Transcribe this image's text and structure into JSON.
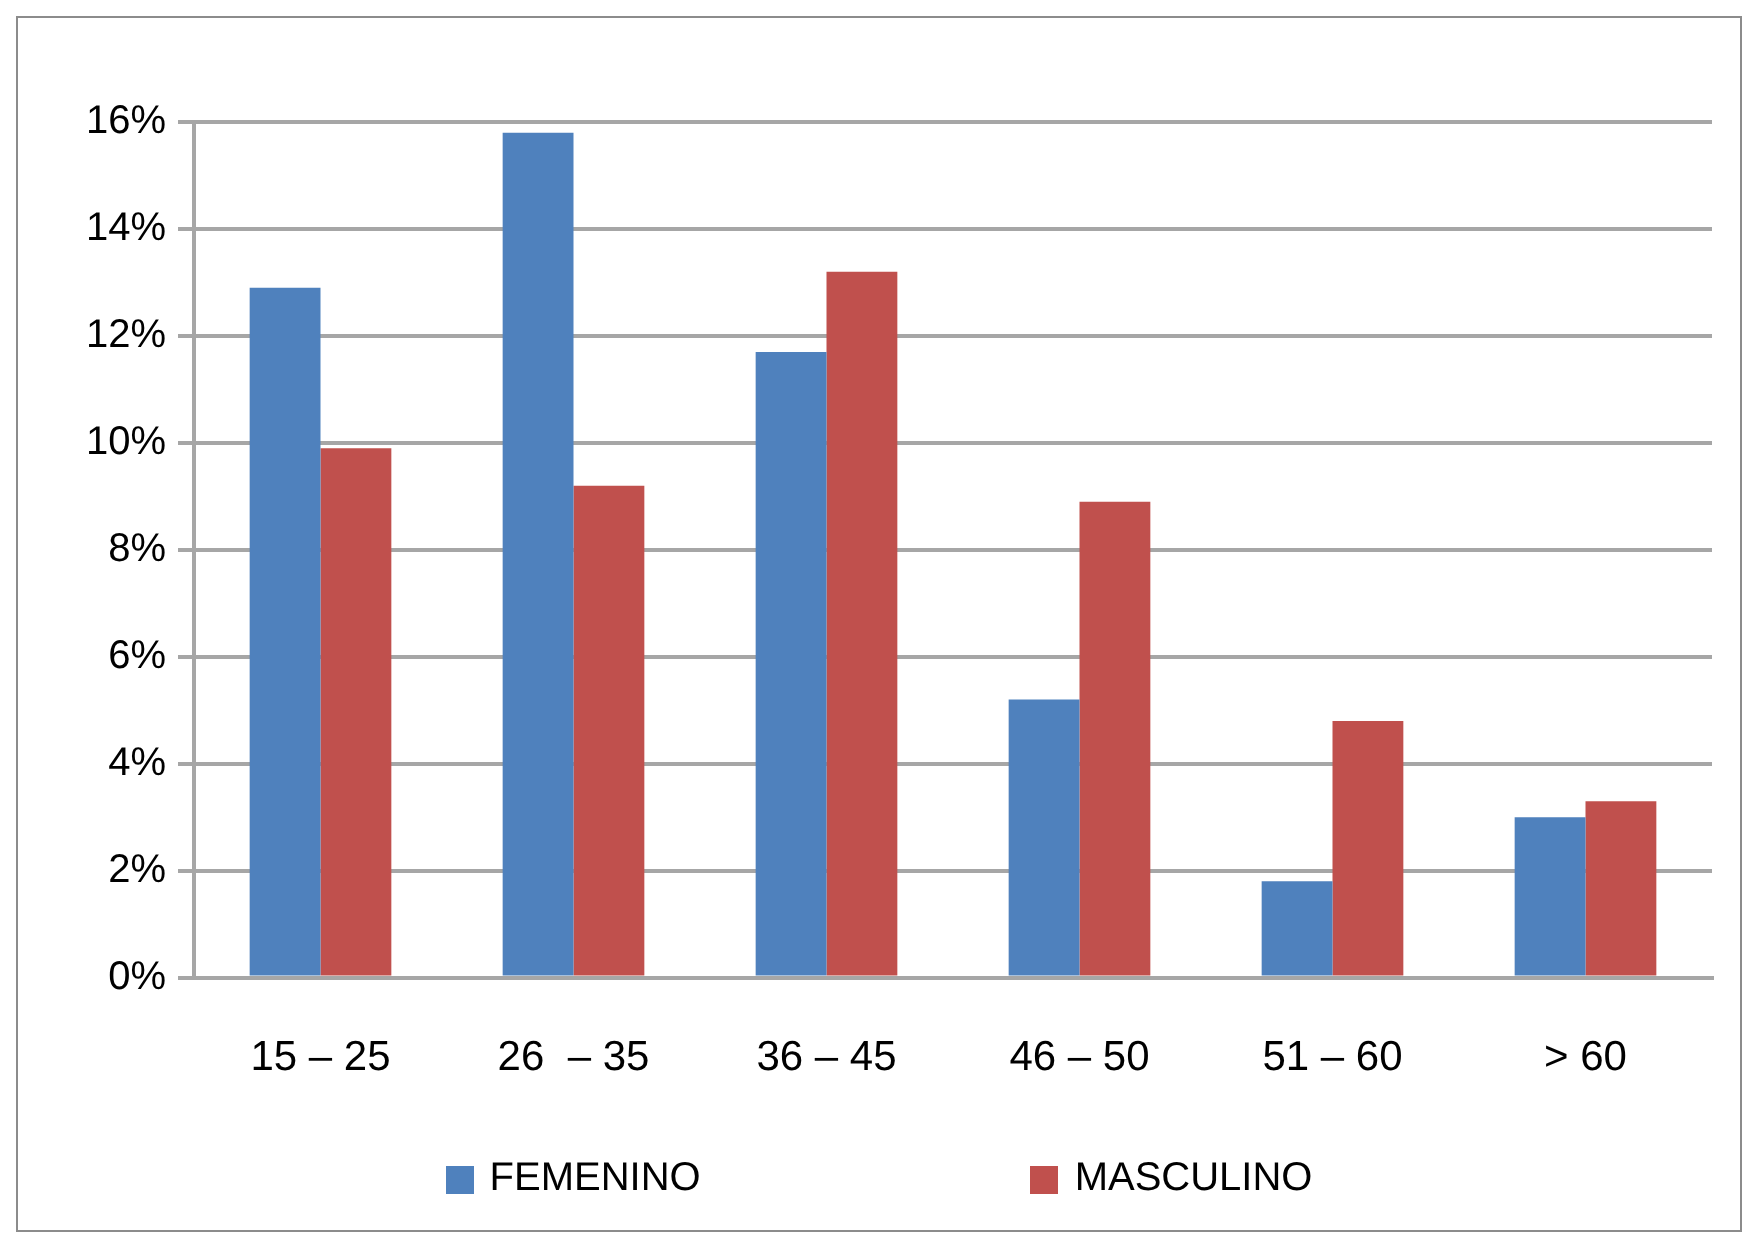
{
  "chart_data": {
    "type": "bar",
    "categories": [
      "15 – 25",
      "26  – 35",
      "36 – 45",
      "46 – 50",
      "51 – 60",
      "> 60"
    ],
    "series": [
      {
        "name": "FEMENINO",
        "color": "#4f81bd",
        "values": [
          12.9,
          15.8,
          11.7,
          5.2,
          1.8,
          3.0
        ]
      },
      {
        "name": "MASCULINO",
        "color": "#c0504d",
        "values": [
          9.9,
          9.2,
          13.2,
          8.9,
          4.8,
          3.3
        ]
      }
    ],
    "ylim": [
      0,
      16
    ],
    "yticks": [
      {
        "value": 0,
        "label": "0%"
      },
      {
        "value": 2,
        "label": "2%"
      },
      {
        "value": 4,
        "label": "4%"
      },
      {
        "value": 6,
        "label": "6%"
      },
      {
        "value": 8,
        "label": "8%"
      },
      {
        "value": 10,
        "label": "10%"
      },
      {
        "value": 12,
        "label": "12%"
      },
      {
        "value": 14,
        "label": "14%"
      },
      {
        "value": 16,
        "label": "16%"
      }
    ],
    "grid": "y",
    "legend": "bottom"
  }
}
